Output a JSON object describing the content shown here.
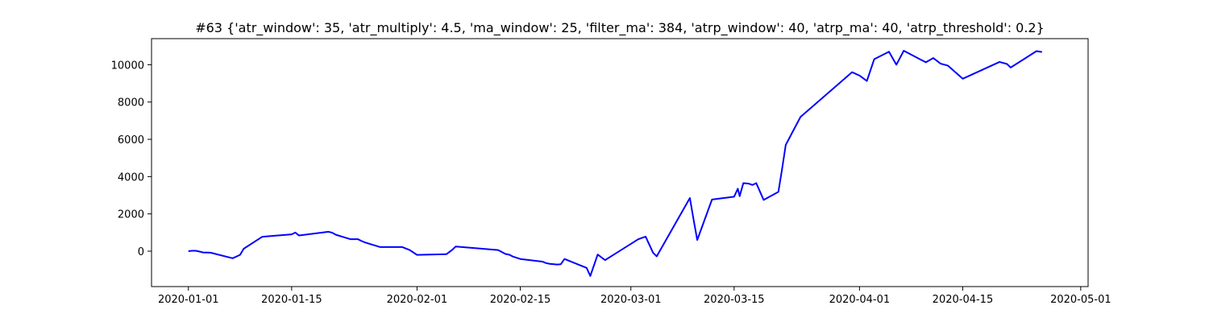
{
  "chart_data": {
    "type": "line",
    "title": "#63 {'atr_window': 35, 'atr_multiply': 4.5, 'ma_window': 25, 'filter_ma': 384, 'atrp_window': 40, 'atrp_ma': 40, 'atrp_threshold': 0.2}",
    "xlabel": "",
    "ylabel": "",
    "xlim": [
      "2019-12-27",
      "2020-05-02"
    ],
    "ylim": [
      -1900,
      11400
    ],
    "grid": false,
    "x_ticks": [
      "2020-01-01",
      "2020-01-15",
      "2020-02-01",
      "2020-02-15",
      "2020-03-01",
      "2020-03-15",
      "2020-04-01",
      "2020-04-15",
      "2020-05-01"
    ],
    "y_ticks": [
      0,
      2000,
      4000,
      6000,
      8000,
      10000
    ],
    "series": [
      {
        "color": "#0000ff",
        "x": [
          "2020-01-01",
          "2020-01-01T12:00",
          "2020-01-02",
          "2020-01-02T12:00",
          "2020-01-03",
          "2020-01-04",
          "2020-01-07",
          "2020-01-08",
          "2020-01-08T12:00",
          "2020-01-11",
          "2020-01-15",
          "2020-01-15T12:00",
          "2020-01-16",
          "2020-01-20",
          "2020-01-20T12:00",
          "2020-01-21",
          "2020-01-22",
          "2020-01-23",
          "2020-01-24",
          "2020-01-24T12:00",
          "2020-01-25",
          "2020-01-27",
          "2020-01-30",
          "2020-01-31",
          "2020-02-01",
          "2020-02-05",
          "2020-02-05T18:00",
          "2020-02-06T06:00",
          "2020-02-12",
          "2020-02-13",
          "2020-02-13T12:00",
          "2020-02-14",
          "2020-02-15",
          "2020-02-18",
          "2020-02-18T12:00",
          "2020-02-19",
          "2020-02-20",
          "2020-02-20T12:00",
          "2020-02-21",
          "2020-02-24",
          "2020-02-24T12:00",
          "2020-02-25T12:00",
          "2020-02-26T12:00",
          "2020-03-02",
          "2020-03-03",
          "2020-03-04",
          "2020-03-04T12:00",
          "2020-03-09",
          "2020-03-09T12:00",
          "2020-03-10",
          "2020-03-12",
          "2020-03-15",
          "2020-03-15T12:00",
          "2020-03-15T18:00",
          "2020-03-16T06:00",
          "2020-03-17",
          "2020-03-17T12:00",
          "2020-03-18",
          "2020-03-19",
          "2020-03-21",
          "2020-03-21T12:00",
          "2020-03-22",
          "2020-03-24",
          "2020-03-31",
          "2020-04-01",
          "2020-04-02",
          "2020-04-03",
          "2020-04-05",
          "2020-04-06",
          "2020-04-07",
          "2020-04-10",
          "2020-04-11",
          "2020-04-12",
          "2020-04-13",
          "2020-04-15",
          "2020-04-20",
          "2020-04-21",
          "2020-04-21T12:00",
          "2020-04-25",
          "2020-04-25T18:00"
        ],
        "y": [
          0,
          20,
          20,
          -20,
          -70,
          -80,
          -380,
          -200,
          130,
          770,
          900,
          1000,
          840,
          1040,
          990,
          880,
          760,
          640,
          640,
          540,
          460,
          220,
          220,
          60,
          -200,
          -160,
          60,
          250,
          60,
          -150,
          -190,
          -290,
          -420,
          -560,
          -640,
          -680,
          -720,
          -700,
          -420,
          -900,
          -1330,
          -180,
          -480,
          640,
          780,
          -80,
          -280,
          2850,
          1700,
          600,
          2770,
          2920,
          3350,
          2950,
          3650,
          3620,
          3550,
          3650,
          2750,
          3180,
          4400,
          5700,
          7200,
          9600,
          9420,
          9130,
          10300,
          10700,
          10000,
          10750,
          10130,
          10360,
          10060,
          9950,
          9250,
          10150,
          10040,
          9850,
          10730,
          10680
        ]
      }
    ]
  }
}
